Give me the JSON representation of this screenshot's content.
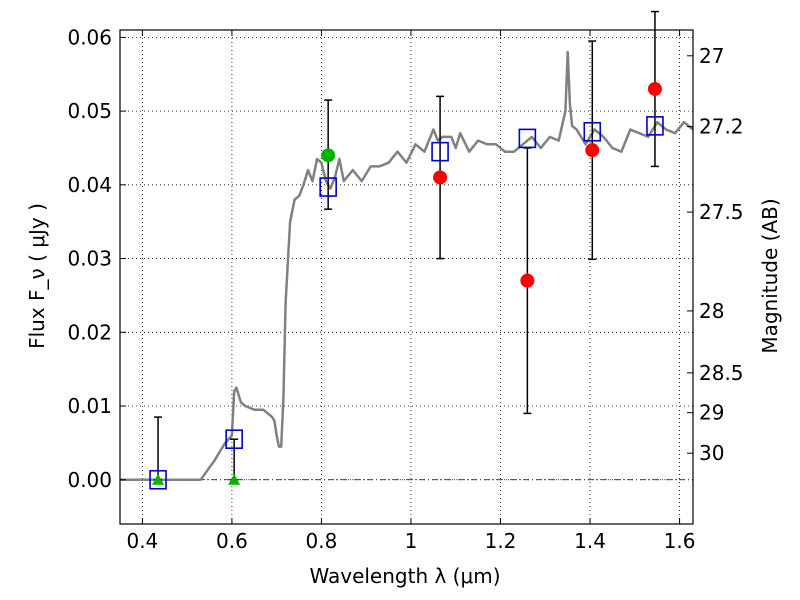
{
  "chart_data": {
    "type": "scatter",
    "xlabel": "Wavelength  λ (μm)",
    "ylabel": "Flux  F_ν  ( μJy )",
    "y2label": "Magnitude (AB)",
    "xlim": [
      0.35,
      1.63
    ],
    "ylim": [
      -0.006,
      0.061
    ],
    "xticks": [
      0.4,
      0.6,
      0.8,
      1.0,
      1.2,
      1.4,
      1.6
    ],
    "xtick_labels": [
      "0.4",
      "0.6",
      "0.8",
      "1",
      "1.2",
      "1.4",
      "1.6"
    ],
    "yticks": [
      0.0,
      0.01,
      0.02,
      0.03,
      0.04,
      0.05,
      0.06
    ],
    "ytick_labels": [
      "0.00",
      "0.01",
      "0.02",
      "0.03",
      "0.04",
      "0.05",
      "0.06"
    ],
    "mag_ticks": [
      {
        "label": "27",
        "flux": 0.0575
      },
      {
        "label": "27.2",
        "flux": 0.0479
      },
      {
        "label": "27.5",
        "flux": 0.0363
      },
      {
        "label": "28",
        "flux": 0.0229
      },
      {
        "label": "28.5",
        "flux": 0.0145
      },
      {
        "label": "29",
        "flux": 0.0091
      },
      {
        "label": "30",
        "flux": 0.0036
      }
    ],
    "grid": true,
    "zero_line": true,
    "colors": {
      "model": "#808080",
      "observed": "#ff0000",
      "detection_green": "#00b400",
      "model_photometry": "#0000cc",
      "errorbar": "#000000"
    },
    "model_spectrum": {
      "x": [
        0.35,
        0.5,
        0.53,
        0.56,
        0.585,
        0.6,
        0.605,
        0.61,
        0.615,
        0.62,
        0.63,
        0.65,
        0.67,
        0.69,
        0.695,
        0.7,
        0.705,
        0.71,
        0.715,
        0.72,
        0.73,
        0.74,
        0.75,
        0.76,
        0.77,
        0.78,
        0.79,
        0.8,
        0.81,
        0.82,
        0.83,
        0.84,
        0.85,
        0.87,
        0.89,
        0.91,
        0.93,
        0.95,
        0.97,
        0.99,
        1.01,
        1.03,
        1.05,
        1.06,
        1.07,
        1.09,
        1.1,
        1.11,
        1.13,
        1.15,
        1.17,
        1.19,
        1.21,
        1.23,
        1.25,
        1.27,
        1.29,
        1.31,
        1.33,
        1.345,
        1.35,
        1.355,
        1.36,
        1.37,
        1.39,
        1.41,
        1.43,
        1.45,
        1.47,
        1.49,
        1.51,
        1.53,
        1.55,
        1.57,
        1.59,
        1.61,
        1.63
      ],
      "y": [
        0.0,
        0.0,
        0.0,
        0.0025,
        0.005,
        0.006,
        0.012,
        0.0125,
        0.0115,
        0.0105,
        0.01,
        0.0095,
        0.0095,
        0.0085,
        0.008,
        0.006,
        0.0045,
        0.0045,
        0.011,
        0.024,
        0.035,
        0.038,
        0.0385,
        0.04,
        0.042,
        0.0405,
        0.0435,
        0.043,
        0.0405,
        0.0395,
        0.041,
        0.0435,
        0.0405,
        0.042,
        0.0405,
        0.0425,
        0.0425,
        0.043,
        0.0445,
        0.043,
        0.0455,
        0.0445,
        0.0475,
        0.046,
        0.0465,
        0.0465,
        0.045,
        0.047,
        0.0445,
        0.046,
        0.0455,
        0.0455,
        0.0445,
        0.0445,
        0.0455,
        0.0465,
        0.045,
        0.0465,
        0.046,
        0.05,
        0.058,
        0.051,
        0.048,
        0.0475,
        0.0455,
        0.0475,
        0.0465,
        0.045,
        0.0445,
        0.0475,
        0.047,
        0.0465,
        0.0485,
        0.0475,
        0.047,
        0.0485,
        0.0475
      ]
    },
    "observed_points": {
      "marker": "circle",
      "x": [
        1.065,
        1.26,
        1.405,
        1.545
      ],
      "y": [
        0.041,
        0.027,
        0.0447,
        0.053
      ],
      "err": [
        0.011,
        0.018,
        0.0148,
        0.0105
      ]
    },
    "green_points": [
      {
        "marker": "circle",
        "x": 0.815,
        "y": 0.044,
        "err_low": 0.0073,
        "err_high": 0.0075
      },
      {
        "marker": "triangle",
        "x": 0.435,
        "y": 0.0,
        "err_low": 0.0,
        "err_high": 0.0085
      },
      {
        "marker": "triangle",
        "x": 0.605,
        "y": 0.0,
        "err_low": 0.0,
        "err_high": 0.0055
      }
    ],
    "model_photometry": {
      "marker": "square",
      "x": [
        0.435,
        0.605,
        0.815,
        1.065,
        1.26,
        1.405,
        1.545
      ],
      "y": [
        0.0,
        0.0055,
        0.0397,
        0.0445,
        0.0463,
        0.0472,
        0.048
      ]
    }
  }
}
